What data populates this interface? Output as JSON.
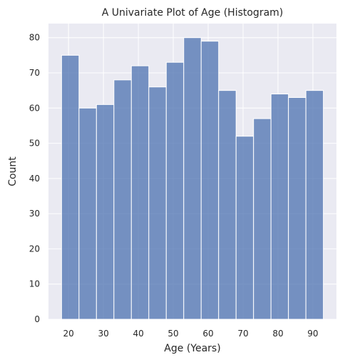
{
  "chart_data": {
    "type": "bar",
    "title": "A Univariate Plot of Age (Histogram)",
    "xlabel": "Age (Years)",
    "ylabel": "Count",
    "bin_edges": [
      18,
      23,
      28,
      33,
      38,
      43,
      48,
      53,
      58,
      63,
      68,
      73,
      78,
      83,
      88,
      93
    ],
    "values": [
      75,
      60,
      61,
      68,
      72,
      66,
      73,
      80,
      79,
      65,
      52,
      57,
      64,
      63,
      65
    ],
    "xlim": [
      14.25,
      96.75
    ],
    "ylim": [
      0,
      84
    ],
    "xticks": [
      "20",
      "30",
      "40",
      "50",
      "60",
      "70",
      "80",
      "90"
    ],
    "yticks": [
      "0",
      "10",
      "20",
      "30",
      "40",
      "50",
      "60",
      "70",
      "80"
    ],
    "grid": true,
    "colors": {
      "bar": "#4c72b0",
      "background": "#eaeaf2",
      "grid": "#ffffff"
    }
  }
}
